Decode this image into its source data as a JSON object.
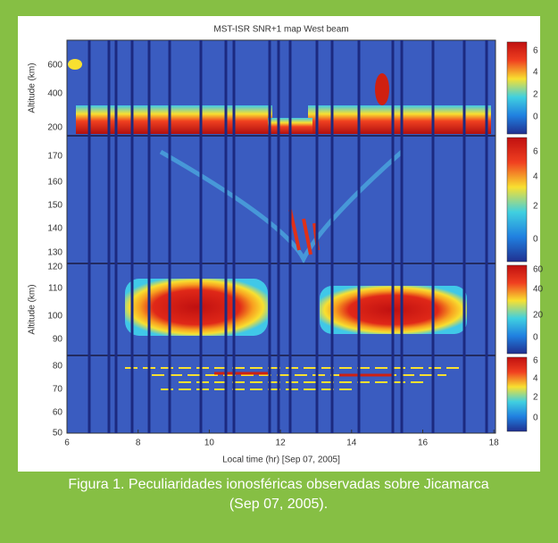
{
  "figure": {
    "title": "MST-ISR SNR+1 map West beam",
    "x_axis": {
      "label": "Local time (hr) [Sep 07, 2005]",
      "ticks": [
        "6",
        "8",
        "10",
        "12",
        "14",
        "16",
        "18"
      ]
    },
    "panels": [
      {
        "y_label": "Altitude (km)",
        "y_ticks": [
          "600",
          "400",
          "200"
        ],
        "colorbar_ticks": [
          "6",
          "4",
          "2",
          "0"
        ]
      },
      {
        "y_ticks": [
          "170",
          "160",
          "150",
          "140",
          "130"
        ],
        "colorbar_ticks": [
          "6",
          "4",
          "2",
          "0"
        ]
      },
      {
        "y_label": "Altitude (km)",
        "y_ticks": [
          "120",
          "110",
          "100",
          "90"
        ],
        "colorbar_ticks": [
          "60",
          "40",
          "20",
          "0"
        ]
      },
      {
        "y_ticks": [
          "80",
          "70",
          "60",
          "50"
        ],
        "colorbar_ticks": [
          "6",
          "4",
          "2",
          "0"
        ]
      }
    ]
  },
  "caption": "Figura 1. Peculiaridades ionosféricas observadas sobre Jicamarca (Sep 07, 2005)."
}
